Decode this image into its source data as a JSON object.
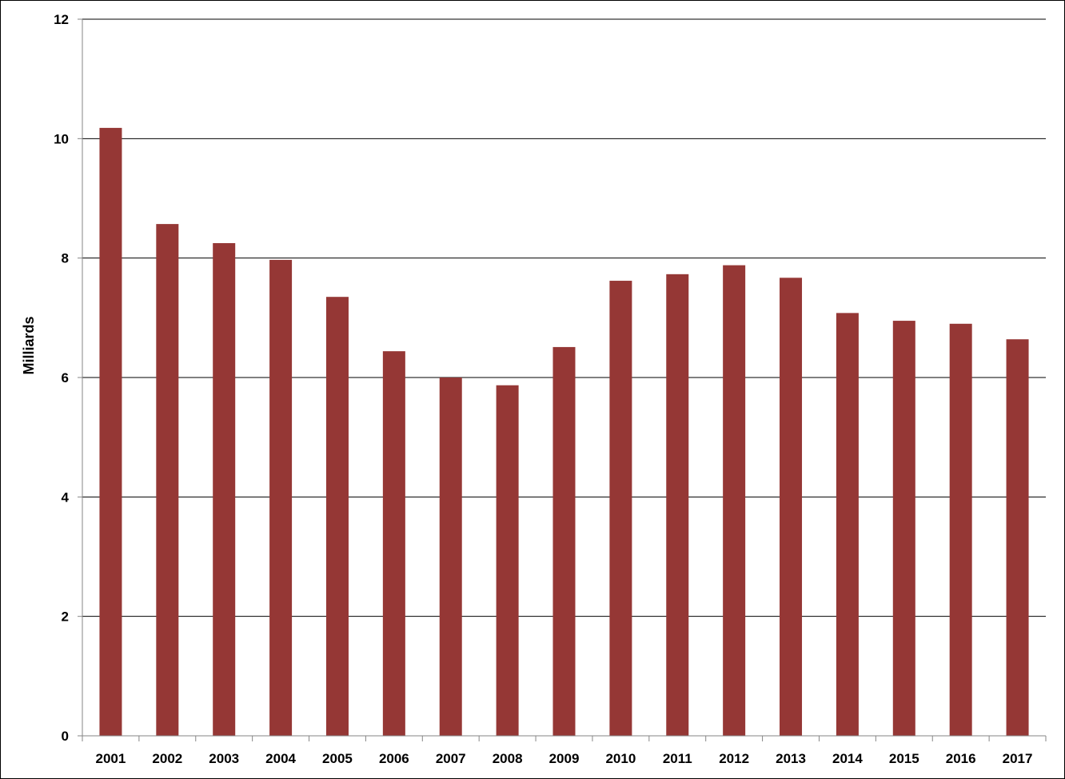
{
  "chart_data": {
    "type": "bar",
    "title": "",
    "xlabel": "",
    "ylabel": "Milliards",
    "ylim": [
      0,
      12
    ],
    "yticks": [
      0,
      2,
      4,
      6,
      8,
      10,
      12
    ],
    "grid": true,
    "legend": "none",
    "colors": {
      "bar": "#953735",
      "grid": "#000000",
      "axis": "#868686"
    },
    "categories": [
      "2001",
      "2002",
      "2003",
      "2004",
      "2005",
      "2006",
      "2007",
      "2008",
      "2009",
      "2010",
      "2011",
      "2012",
      "2013",
      "2014",
      "2015",
      "2016",
      "2017"
    ],
    "values": [
      10.18,
      8.57,
      8.25,
      7.97,
      7.35,
      6.44,
      6.0,
      5.87,
      6.51,
      7.62,
      7.73,
      7.88,
      7.67,
      7.08,
      6.95,
      6.9,
      6.64
    ]
  }
}
